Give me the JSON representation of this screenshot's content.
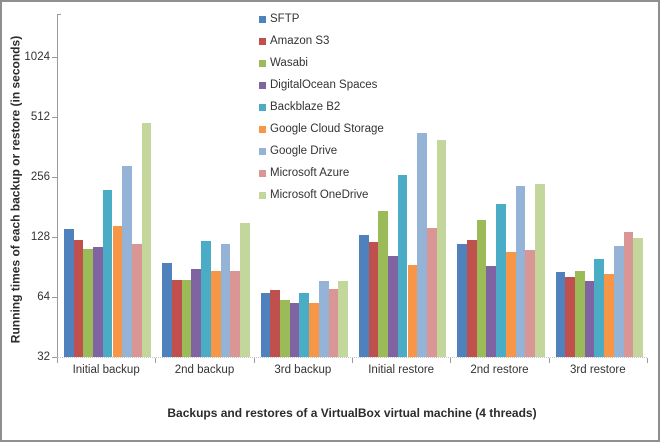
{
  "chart_data": {
    "type": "bar",
    "scale": "log2",
    "title": "",
    "xlabel": "Backups and restores of a VirtualBox virtual machine (4 threads)",
    "ylabel": "Running times of each backup or restore (in seconds)",
    "ylim": [
      32,
      1536
    ],
    "yticks": [
      32,
      64,
      128,
      256,
      512,
      1024
    ],
    "grid": false,
    "legend_position": "top-center",
    "categories": [
      "Initial backup",
      "2nd backup",
      "3rd backup",
      "Initial restore",
      "2nd restore",
      "3rd restore"
    ],
    "series": [
      {
        "name": "SFTP",
        "color": "#4F81BD",
        "values": [
          140,
          95,
          67,
          131,
          118,
          85
        ]
      },
      {
        "name": "Amazon S3",
        "color": "#C0504D",
        "values": [
          123,
          78,
          69,
          121,
          123,
          81
        ]
      },
      {
        "name": "Wasabi",
        "color": "#9BBB59",
        "values": [
          112,
          78,
          62,
          172,
          156,
          86
        ]
      },
      {
        "name": "DigitalOcean Spaces",
        "color": "#8064A2",
        "values": [
          114,
          88,
          60,
          103,
          92,
          77
        ]
      },
      {
        "name": "Backblaze B2",
        "color": "#4BACC6",
        "values": [
          220,
          122,
          67,
          262,
          187,
          99
        ]
      },
      {
        "name": "Google Cloud Storage",
        "color": "#F79646",
        "values": [
          146,
          86,
          60,
          93,
          108,
          83
        ]
      },
      {
        "name": "Google Drive",
        "color": "#95B3D7",
        "values": [
          290,
          118,
          77,
          425,
          230,
          116
        ]
      },
      {
        "name": "Microsoft Azure",
        "color": "#D99694",
        "values": [
          118,
          86,
          70,
          142,
          110,
          136
        ]
      },
      {
        "name": "Microsoft OneDrive",
        "color": "#C3D69B",
        "values": [
          478,
          151,
          77,
          394,
          237,
          127
        ]
      }
    ]
  }
}
